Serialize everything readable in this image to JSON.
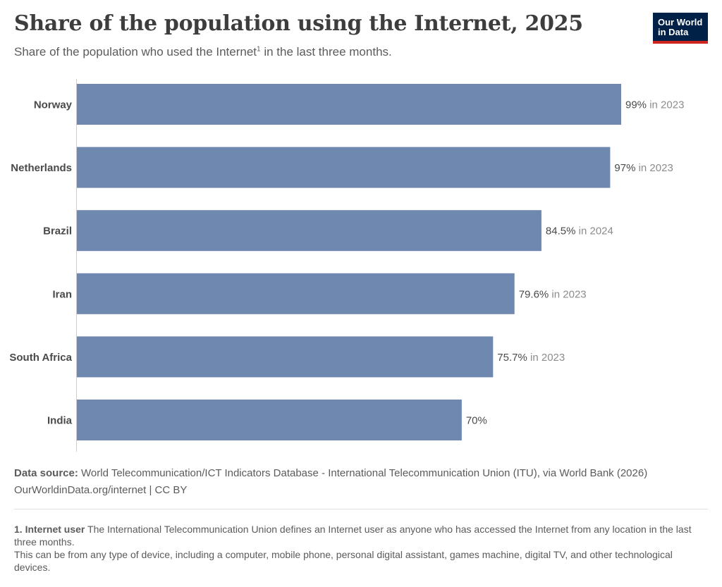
{
  "header": {
    "title": "Share of the population using the Internet, 2025",
    "subtitle_main": "Share of the population who used the Internet",
    "subtitle_sup": "1",
    "subtitle_tail": " in the last three months."
  },
  "logo": {
    "line1": "Our World",
    "line2": "in Data"
  },
  "colors": {
    "bar": "#6f88b0",
    "axis": "#cccccc",
    "value_text": "#4a4a4a",
    "year_text": "#8c8c8c",
    "label_text": "#4a4a4a"
  },
  "chart_data": {
    "type": "bar",
    "orientation": "horizontal",
    "categories": [
      "Norway",
      "Netherlands",
      "Brazil",
      "Iran",
      "South Africa",
      "India"
    ],
    "values": [
      99,
      97,
      84.5,
      79.6,
      75.7,
      70
    ],
    "value_labels": [
      "99%",
      "97%",
      "84.5%",
      "79.6%",
      "75.7%",
      "70%"
    ],
    "year_notes": [
      " in 2023",
      " in 2023",
      " in 2024",
      " in 2023",
      " in 2023",
      ""
    ],
    "xlim": [
      0,
      99
    ],
    "unit": "%"
  },
  "footer": {
    "source_label": "Data source:",
    "source_text": " World Telecommunication/ICT Indicators Database - International Telecommunication Union (ITU), via World Bank (2026)",
    "url_text": "OurWorldinData.org/internet | CC BY",
    "note_label": "1. Internet user",
    "note_text": " The International Telecommunication Union defines an Internet user as anyone who has accessed the Internet from any location in the last three months.",
    "note_text2": "This can be from any type of device, including a computer, mobile phone, personal digital assistant, games machine, digital TV, and other technological devices."
  }
}
